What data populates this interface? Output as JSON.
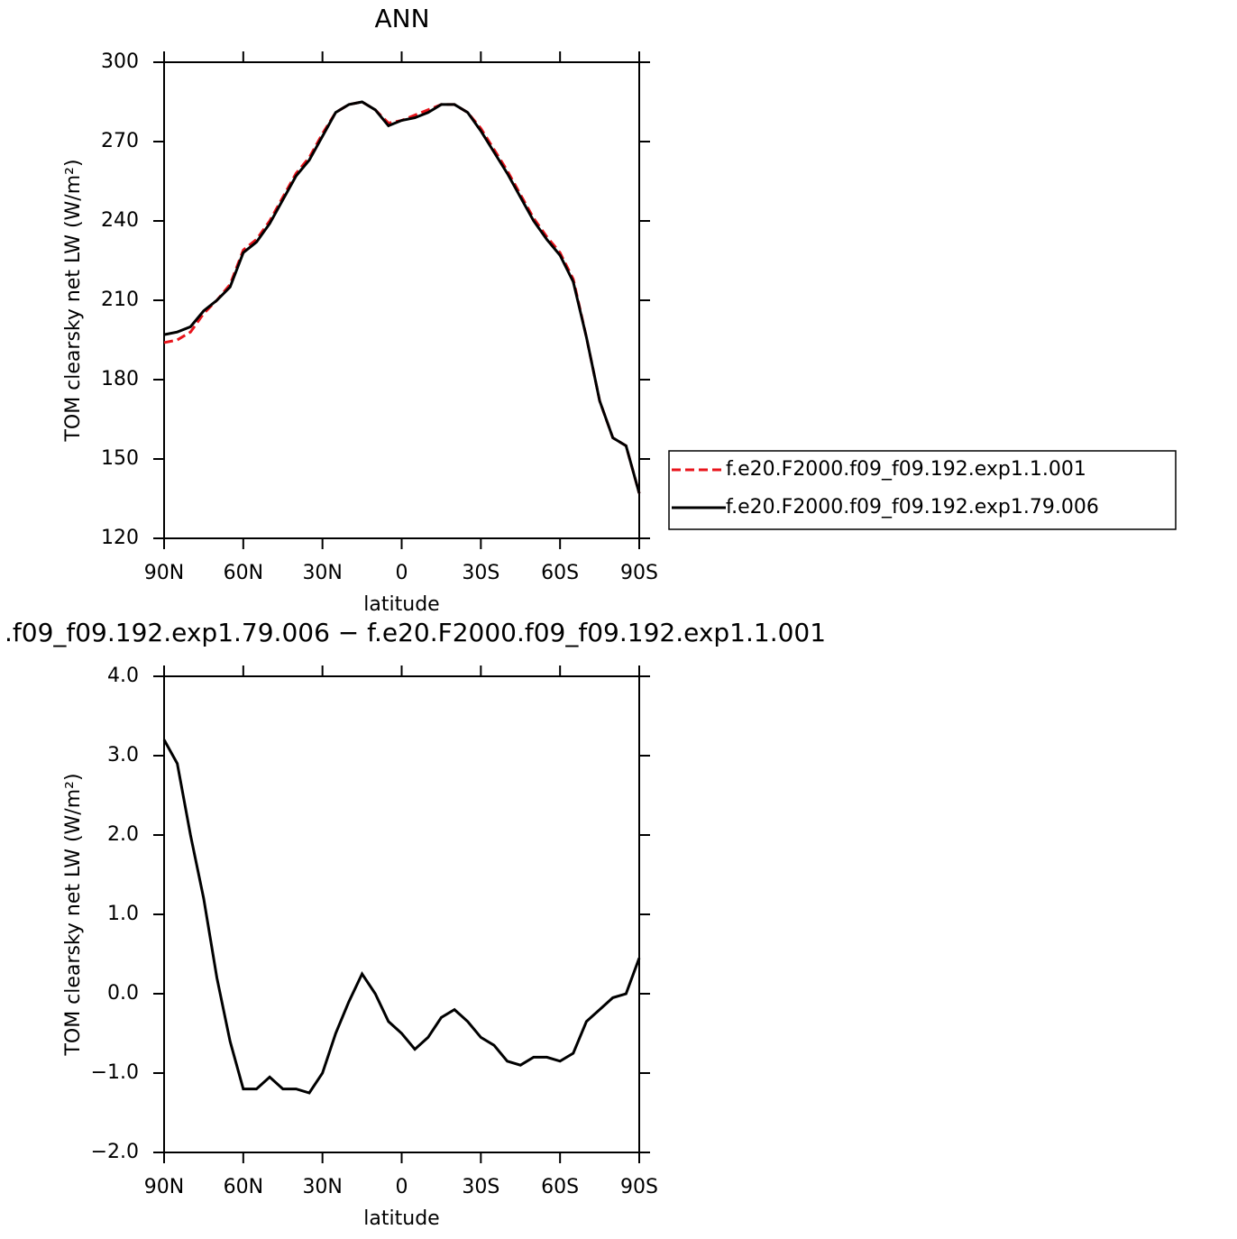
{
  "chart_data": [
    {
      "type": "line",
      "title": "ANN",
      "xlabel": "latitude",
      "ylabel": "TOM clearsky net LW (W/m²)",
      "x": [
        90,
        85,
        80,
        75,
        70,
        65,
        60,
        55,
        50,
        45,
        40,
        35,
        30,
        25,
        20,
        15,
        10,
        5,
        0,
        -5,
        -10,
        -15,
        -20,
        -25,
        -30,
        -35,
        -40,
        -45,
        -50,
        -55,
        -60,
        -65,
        -70,
        -75,
        -80,
        -85,
        -90
      ],
      "xlim": [
        90,
        -90
      ],
      "xticks": [
        {
          "value": 90,
          "label": "90N"
        },
        {
          "value": 60,
          "label": "60N"
        },
        {
          "value": 30,
          "label": "30N"
        },
        0,
        {
          "value": -30,
          "label": "30S"
        },
        {
          "value": -60,
          "label": "60S"
        },
        {
          "value": -90,
          "label": "90S"
        }
      ],
      "ylim": [
        120,
        300
      ],
      "yticks": [
        120,
        150,
        180,
        210,
        240,
        270,
        300
      ],
      "legend": "right",
      "series": [
        {
          "name": "f.e20.F2000.f09_f09.192.exp1.1.001",
          "color": "#e8141b",
          "dash": "dashed",
          "values": [
            194,
            195,
            198,
            205,
            210,
            216,
            229,
            233,
            240,
            249,
            258,
            264,
            273,
            281,
            284,
            285,
            282,
            277,
            278,
            280,
            282,
            284,
            284,
            281,
            275,
            267,
            259,
            250,
            241,
            234,
            228,
            218,
            196,
            172,
            158,
            155,
            137
          ]
        },
        {
          "name": "f.e20.F2000.f09_f09.192.exp1.79.006",
          "color": "#000000",
          "dash": "solid",
          "values": [
            197,
            198,
            200,
            206,
            210,
            215,
            228,
            232,
            239,
            248,
            257,
            263,
            272,
            281,
            284,
            285,
            282,
            276,
            278,
            279,
            281,
            284,
            284,
            281,
            274,
            266,
            258,
            249,
            240,
            233,
            227,
            217,
            196,
            172,
            158,
            155,
            137
          ]
        }
      ]
    },
    {
      "type": "line",
      "title": ".f09_f09.192.exp1.79.006 − f.e20.F2000.f09_f09.192.exp1.1.001",
      "xlabel": "latitude",
      "ylabel": "TOM clearsky net LW (W/m²)",
      "x": [
        90,
        85,
        80,
        75,
        70,
        65,
        60,
        55,
        50,
        45,
        40,
        35,
        30,
        25,
        20,
        15,
        10,
        5,
        0,
        -5,
        -10,
        -15,
        -20,
        -25,
        -30,
        -35,
        -40,
        -45,
        -50,
        -55,
        -60,
        -65,
        -70,
        -75,
        -80,
        -85,
        -90
      ],
      "xlim": [
        90,
        -90
      ],
      "xticks": [
        {
          "value": 90,
          "label": "90N"
        },
        {
          "value": 60,
          "label": "60N"
        },
        {
          "value": 30,
          "label": "30N"
        },
        0,
        {
          "value": -30,
          "label": "30S"
        },
        {
          "value": -60,
          "label": "60S"
        },
        {
          "value": -90,
          "label": "90S"
        }
      ],
      "ylim": [
        -2,
        4
      ],
      "yticks": [
        {
          "value": -2,
          "label": "−2.0"
        },
        {
          "value": -1,
          "label": "−1.0"
        },
        {
          "value": 0,
          "label": "0.0"
        },
        {
          "value": 1,
          "label": "1.0"
        },
        {
          "value": 2,
          "label": "2.0"
        },
        {
          "value": 3,
          "label": "3.0"
        },
        {
          "value": 4,
          "label": "4.0"
        }
      ],
      "series": [
        {
          "color": "#000000",
          "dash": "solid",
          "values": [
            3.2,
            2.9,
            2.0,
            1.2,
            0.2,
            -0.6,
            -1.2,
            -1.2,
            -1.05,
            -1.2,
            -1.2,
            -1.25,
            -1.0,
            -0.5,
            -0.1,
            0.25,
            0.0,
            -0.35,
            -0.5,
            -0.7,
            -0.55,
            -0.3,
            -0.2,
            -0.35,
            -0.55,
            -0.65,
            -0.85,
            -0.9,
            -0.8,
            -0.8,
            -0.85,
            -0.75,
            -0.35,
            -0.2,
            -0.05,
            0.0,
            0.45
          ]
        }
      ]
    }
  ]
}
